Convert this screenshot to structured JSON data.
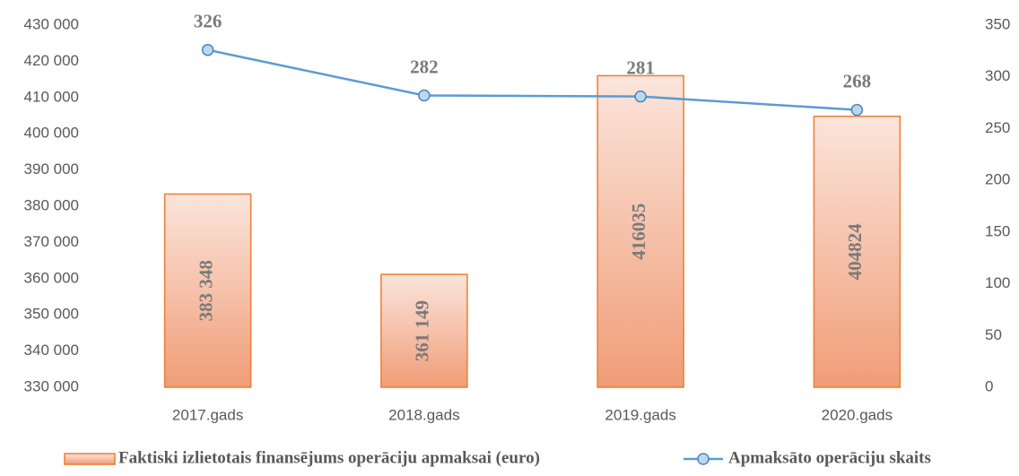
{
  "chart_data": {
    "type": "bar",
    "categories": [
      "2017.gads",
      "2018.gads",
      "2019.gads",
      "2020.gads"
    ],
    "series": [
      {
        "name": "Faktiski izlietotais finansējums operāciju apmaksai (euro)",
        "type": "bar",
        "color": "#ed7d31",
        "values": [
          383348,
          361149,
          416035,
          404824
        ],
        "value_labels": [
          "383 348",
          "361 149",
          "416035",
          "404824"
        ]
      },
      {
        "name": "Apmaksāto operāciju skaits",
        "type": "line",
        "axis": "y2",
        "color": "#5b9bd5",
        "values": [
          326,
          282,
          281,
          268
        ]
      }
    ],
    "ylim": [
      330000,
      430000
    ],
    "yticks": [
      {
        "value": 330000,
        "label": "330 000"
      },
      {
        "value": 340000,
        "label": "340 000"
      },
      {
        "value": 350000,
        "label": "350 000"
      },
      {
        "value": 360000,
        "label": "360 000"
      },
      {
        "value": 370000,
        "label": "370 000"
      },
      {
        "value": 380000,
        "label": "380 000"
      },
      {
        "value": 390000,
        "label": "390 000"
      },
      {
        "value": 400000,
        "label": "400 000"
      },
      {
        "value": 410000,
        "label": "410 000"
      },
      {
        "value": 420000,
        "label": "420 000"
      },
      {
        "value": 430000,
        "label": "430 000"
      }
    ],
    "y2lim": [
      0,
      350
    ],
    "y2ticks": [
      0,
      50,
      100,
      150,
      200,
      250,
      300,
      350
    ],
    "grid": false,
    "legend": "bottom"
  }
}
